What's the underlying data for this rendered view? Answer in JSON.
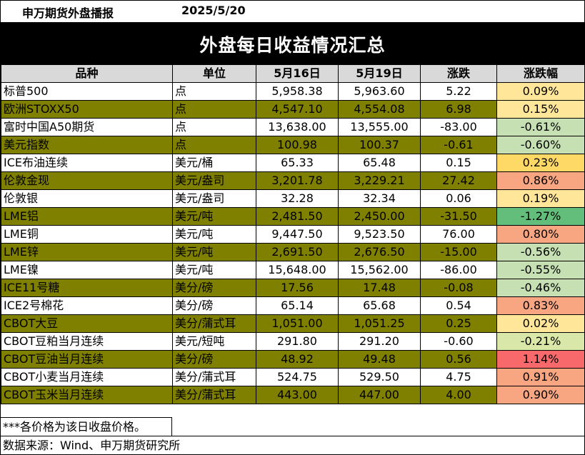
{
  "header": {
    "company": "申万期货外盘播报",
    "date": "2025/5/20",
    "title": "外盘每日收益情况汇总"
  },
  "columns": [
    "品种",
    "单位",
    "5月16日",
    "5月19日",
    "涨跌",
    "涨跌幅"
  ],
  "rows": [
    {
      "name": "标普500",
      "unit": "点",
      "prev": "5,958.38",
      "curr": "5,963.60",
      "change": "5.22",
      "pct": "0.09%",
      "pct_color": "#ffe699"
    },
    {
      "name": "欧洲STOXX50",
      "unit": "点",
      "prev": "4,547.10",
      "curr": "4,554.08",
      "change": "6.98",
      "pct": "0.15%",
      "pct_color": "#ffe699"
    },
    {
      "name": "富时中国A50期货",
      "unit": "点",
      "prev": "13,638.00",
      "curr": "13,555.00",
      "change": "-83.00",
      "pct": "-0.61%",
      "pct_color": "#c6e0b4"
    },
    {
      "name": "美元指数",
      "unit": "点",
      "prev": "100.98",
      "curr": "100.37",
      "change": "-0.61",
      "pct": "-0.60%",
      "pct_color": "#c6e0b4"
    },
    {
      "name": "ICE布油连续",
      "unit": "美元/桶",
      "prev": "65.33",
      "curr": "65.48",
      "change": "0.15",
      "pct": "0.23%",
      "pct_color": "#ffd966"
    },
    {
      "name": "伦敦金现",
      "unit": "美元/盎司",
      "prev": "3,201.78",
      "curr": "3,229.21",
      "change": "27.42",
      "pct": "0.86%",
      "pct_color": "#f8a582"
    },
    {
      "name": "伦敦银",
      "unit": "美元/盎司",
      "prev": "32.28",
      "curr": "32.34",
      "change": "0.06",
      "pct": "0.19%",
      "pct_color": "#ffe699"
    },
    {
      "name": "LME铝",
      "unit": "美元/吨",
      "prev": "2,481.50",
      "curr": "2,450.00",
      "change": "-31.50",
      "pct": "-1.27%",
      "pct_color": "#63be7b"
    },
    {
      "name": "LME铜",
      "unit": "美元/吨",
      "prev": "9,447.50",
      "curr": "9,523.50",
      "change": "76.00",
      "pct": "0.80%",
      "pct_color": "#f8a582"
    },
    {
      "name": "LME锌",
      "unit": "美元/吨",
      "prev": "2,691.50",
      "curr": "2,676.50",
      "change": "-15.00",
      "pct": "-0.56%",
      "pct_color": "#c6e0b4"
    },
    {
      "name": "LME镍",
      "unit": "美元/吨",
      "prev": "15,648.00",
      "curr": "15,562.00",
      "change": "-86.00",
      "pct": "-0.55%",
      "pct_color": "#c6e0b4"
    },
    {
      "name": "ICE11号糖",
      "unit": "美分/磅",
      "prev": "17.56",
      "curr": "17.48",
      "change": "-0.08",
      "pct": "-0.46%",
      "pct_color": "#c6e0b4"
    },
    {
      "name": "ICE2号棉花",
      "unit": "美分/磅",
      "prev": "65.14",
      "curr": "65.68",
      "change": "0.54",
      "pct": "0.83%",
      "pct_color": "#f8a582"
    },
    {
      "name": "CBOT大豆",
      "unit": "美分/蒲式耳",
      "prev": "1,051.00",
      "curr": "1,051.25",
      "change": "0.25",
      "pct": "0.02%",
      "pct_color": "#ffe699"
    },
    {
      "name": "CBOT豆粕当月连续",
      "unit": "美元/短吨",
      "prev": "291.80",
      "curr": "291.20",
      "change": "-0.60",
      "pct": "-0.21%",
      "pct_color": "#d9e7a8"
    },
    {
      "name": "CBOT豆油当月连续",
      "unit": "美分/磅",
      "prev": "48.92",
      "curr": "49.48",
      "change": "0.56",
      "pct": "1.14%",
      "pct_color": "#f8696b"
    },
    {
      "name": "CBOT小麦当月连续",
      "unit": "美分/蒲式耳",
      "prev": "524.75",
      "curr": "529.50",
      "change": "4.75",
      "pct": "0.91%",
      "pct_color": "#f8a582"
    },
    {
      "name": "CBOT玉米当月连续",
      "unit": "美分/蒲式耳",
      "prev": "443.00",
      "curr": "447.00",
      "change": "4.00",
      "pct": "0.90%",
      "pct_color": "#f8a582"
    }
  ],
  "notes": {
    "price_note": "***各价格为该日收盘价格。",
    "source": "数据来源：Wind、申万期货研究所"
  },
  "colors": {
    "band_odd": "#ffffff",
    "band_even": "#7f7f00",
    "header_bg": "#d9d9d9",
    "title_bg": "#000000"
  }
}
